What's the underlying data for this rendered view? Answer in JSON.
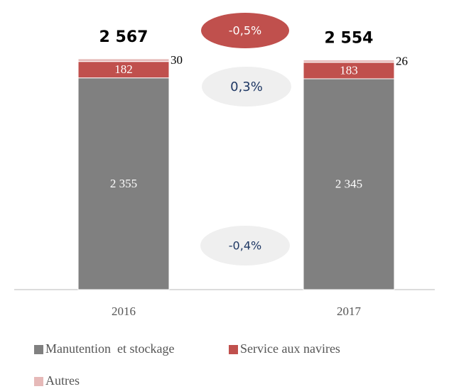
{
  "chart_data": {
    "type": "stacked_bar",
    "categories": [
      "2016",
      "2017"
    ],
    "series": [
      {
        "name": "Manutention  et stockage",
        "color": "#808080",
        "values": [
          2355,
          2345
        ],
        "value_labels": [
          "2 355",
          "2 345"
        ]
      },
      {
        "name": "Service aux navires",
        "color": "#c0504d",
        "values": [
          182,
          183
        ]
      },
      {
        "name": "Autres",
        "color": "#e6b9b8",
        "values": [
          30,
          26
        ]
      }
    ],
    "totals": [
      "2 567",
      "2 554"
    ],
    "annotations": [
      "-0,5%",
      "0,3%",
      "-0,4%"
    ],
    "ylim": [
      0,
      3000
    ]
  }
}
